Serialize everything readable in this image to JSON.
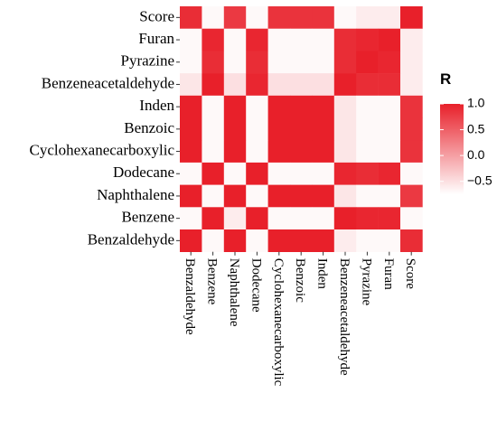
{
  "chart_data": {
    "type": "heatmap",
    "title": "",
    "xlabel": "",
    "ylabel": "",
    "x_categories": [
      "Benzaldehyde",
      "Benzene",
      "Naphthalene",
      "Dodecane",
      "Cyclohexanecarboxylic",
      "Benzoic",
      "Inden",
      "Benzeneacetaldehyde",
      "Pyrazine",
      "Furan",
      "Score"
    ],
    "y_categories": [
      "Score",
      "Furan",
      "Pyrazine",
      "Benzeneacetaldehyde",
      "Inden",
      "Benzoic",
      "Cyclohexanecarboxylic",
      "Dodecane",
      "Naphthalene",
      "Benzene",
      "Benzaldehyde"
    ],
    "values": [
      [
        0.9,
        -0.7,
        0.8,
        -0.7,
        0.85,
        0.85,
        0.85,
        -0.7,
        -0.6,
        -0.6,
        1.0
      ],
      [
        -0.7,
        0.95,
        -0.7,
        0.95,
        -0.7,
        -0.7,
        -0.7,
        0.9,
        0.95,
        1.0,
        -0.6
      ],
      [
        -0.7,
        0.9,
        -0.7,
        0.9,
        -0.7,
        -0.7,
        -0.7,
        0.9,
        1.0,
        0.95,
        -0.6
      ],
      [
        -0.55,
        1.0,
        -0.5,
        0.95,
        -0.5,
        -0.5,
        -0.5,
        1.0,
        0.9,
        0.9,
        -0.6
      ],
      [
        1.0,
        -0.7,
        1.0,
        -0.7,
        1.0,
        1.0,
        1.0,
        -0.55,
        -0.7,
        -0.7,
        0.85
      ],
      [
        1.0,
        -0.7,
        1.0,
        -0.7,
        1.0,
        1.0,
        1.0,
        -0.55,
        -0.7,
        -0.7,
        0.85
      ],
      [
        1.0,
        -0.7,
        1.0,
        -0.7,
        1.0,
        1.0,
        1.0,
        -0.55,
        -0.7,
        -0.7,
        0.85
      ],
      [
        -0.7,
        1.0,
        -0.7,
        1.0,
        -0.7,
        -0.7,
        -0.7,
        0.95,
        0.9,
        0.95,
        -0.7
      ],
      [
        1.0,
        -0.7,
        1.0,
        -0.7,
        1.0,
        1.0,
        1.0,
        -0.55,
        -0.7,
        -0.7,
        0.8
      ],
      [
        -0.7,
        1.0,
        -0.6,
        1.0,
        -0.7,
        -0.7,
        -0.7,
        1.0,
        0.95,
        0.95,
        -0.7
      ],
      [
        1.0,
        -0.7,
        1.0,
        -0.7,
        1.0,
        1.0,
        1.0,
        -0.6,
        -0.7,
        -0.7,
        0.9
      ]
    ],
    "legend": {
      "title": "R",
      "ticks": [
        1.0,
        0.5,
        0.0,
        -0.5
      ],
      "tick_labels": [
        "1.0",
        "0.5",
        "0.0",
        "−0.5"
      ],
      "range": [
        -0.75,
        1.0
      ],
      "placement": "right"
    },
    "colors": {
      "high": "#e8202a",
      "low": "#ffffff"
    }
  }
}
